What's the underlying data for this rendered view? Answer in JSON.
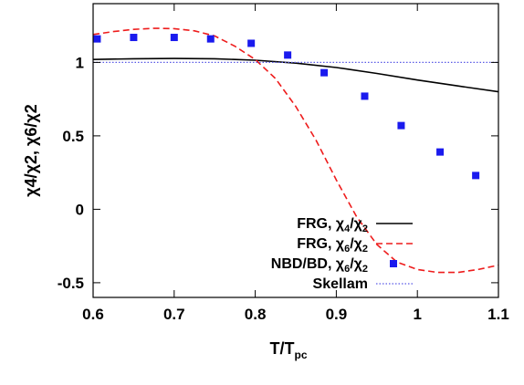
{
  "chart_data": {
    "type": "line",
    "xlabel": "T/T",
    "xlabel_sub": "pc",
    "ylabel": "χ4/χ2, χ6/χ2",
    "xlim": [
      0.6,
      1.1
    ],
    "ylim": [
      -0.6,
      1.4
    ],
    "x_ticks": [
      "0.6",
      "0.7",
      "0.8",
      "0.9",
      "1",
      "1.1"
    ],
    "y_ticks": [
      "-0.5",
      "0",
      "0.5",
      "1"
    ],
    "grid": false,
    "legend_position": "bottom-left",
    "series": [
      {
        "name": "FRG, χ4/χ2",
        "legend_main": "FRG, χ",
        "legend_sub1": "4",
        "legend_mid": "/χ",
        "legend_sub2": "2",
        "style": "solid",
        "color": "#000000",
        "x": [
          0.6,
          0.65,
          0.7,
          0.75,
          0.8,
          0.85,
          0.9,
          0.95,
          1.0,
          1.05,
          1.1
        ],
        "y": [
          1.02,
          1.025,
          1.027,
          1.025,
          1.015,
          0.995,
          0.965,
          0.925,
          0.88,
          0.84,
          0.8
        ]
      },
      {
        "name": "FRG, χ6/χ2",
        "legend_main": "FRG, χ",
        "legend_sub1": "6",
        "legend_mid": "/χ",
        "legend_sub2": "2",
        "style": "dashed",
        "color": "#ee1c1c",
        "x": [
          0.6,
          0.625,
          0.65,
          0.675,
          0.7,
          0.725,
          0.75,
          0.775,
          0.8,
          0.825,
          0.85,
          0.875,
          0.9,
          0.925,
          0.95,
          0.975,
          1.0,
          1.025,
          1.05,
          1.075,
          1.1
        ],
        "y": [
          1.19,
          1.21,
          1.225,
          1.232,
          1.23,
          1.215,
          1.18,
          1.11,
          1.02,
          0.89,
          0.7,
          0.47,
          0.2,
          -0.05,
          -0.24,
          -0.36,
          -0.41,
          -0.43,
          -0.43,
          -0.41,
          -0.38
        ]
      },
      {
        "name": "NBD/BD, χ6/χ2",
        "legend_main": "NBD/BD, χ",
        "legend_sub1": "6",
        "legend_mid": "/χ",
        "legend_sub2": "2",
        "style": "markers",
        "color": "#1a1aee",
        "x": [
          0.605,
          0.65,
          0.7,
          0.745,
          0.795,
          0.84,
          0.885,
          0.935,
          0.98,
          1.028,
          1.072
        ],
        "y": [
          1.16,
          1.17,
          1.17,
          1.16,
          1.13,
          1.05,
          0.93,
          0.77,
          0.57,
          0.39,
          0.23
        ]
      },
      {
        "name": "Skellam",
        "legend_main": "Skellam",
        "legend_sub1": "",
        "legend_mid": "",
        "legend_sub2": "",
        "style": "dotted",
        "color": "#5a5ae6",
        "x": [
          0.6,
          1.1
        ],
        "y": [
          1.0,
          1.0
        ]
      }
    ]
  }
}
